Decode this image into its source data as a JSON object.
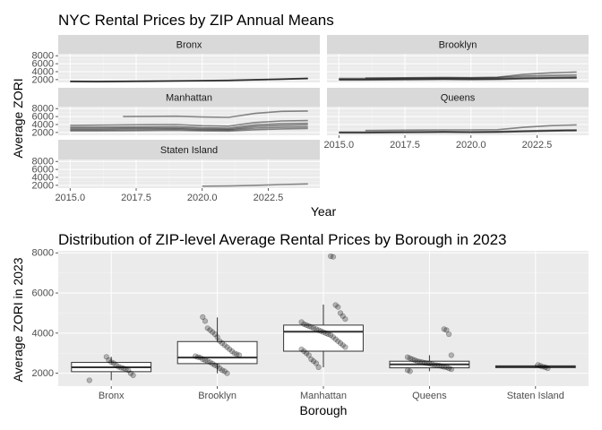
{
  "chart_data": [
    {
      "type": "line",
      "title": "NYC Rental Prices by ZIP Annual Means",
      "xlabel": "Year",
      "ylabel": "Average ZORI",
      "x_ticks": [
        "2015.0",
        "2017.5",
        "2020.0",
        "2022.5"
      ],
      "x_tick_values": [
        2015.0,
        2017.5,
        2020.0,
        2022.5
      ],
      "y_ticks": [
        "2000",
        "4000",
        "6000",
        "8000"
      ],
      "y_tick_values": [
        2000,
        4000,
        6000,
        8000
      ],
      "xlim": [
        2014.55,
        2024.45
      ],
      "ylim": [
        1300,
        8500
      ],
      "facets": [
        {
          "name": "Bronx",
          "series": [
            {
              "x": [
                2015,
                2016,
                2017,
                2018,
                2019,
                2020,
                2021,
                2022,
                2023,
                2024
              ],
              "values": [
                1550,
                1500,
                1560,
                1620,
                1680,
                1720,
                1800,
                1950,
                2100,
                2300
              ]
            },
            {
              "x": [
                2015,
                2016,
                2017,
                2018,
                2019,
                2020,
                2021,
                2022,
                2023,
                2024
              ],
              "values": [
                1600,
                1580,
                1600,
                1650,
                1700,
                1760,
                1850,
                2000,
                2150,
                2350
              ]
            },
            {
              "x": [
                2015,
                2016,
                2017,
                2018,
                2019,
                2020,
                2021,
                2022,
                2023,
                2024
              ],
              "values": [
                1500,
                1460,
                1510,
                1580,
                1640,
                1700,
                1780,
                1920,
                2080,
                2250
              ]
            }
          ]
        },
        {
          "name": "Brooklyn",
          "series": [
            {
              "x": [
                2015,
                2016,
                2017,
                2018,
                2019,
                2020,
                2021,
                2022,
                2023,
                2024
              ],
              "values": [
                2300,
                2320,
                2350,
                2400,
                2450,
                2400,
                2500,
                2900,
                3050,
                3150
              ]
            },
            {
              "x": [
                2015,
                2016,
                2017,
                2018,
                2019,
                2020,
                2021,
                2022,
                2023,
                2024
              ],
              "values": [
                2100,
                2100,
                2150,
                2200,
                2250,
                2200,
                2250,
                2500,
                2600,
                2700
              ]
            },
            {
              "x": [
                2015,
                2016,
                2017,
                2018,
                2019,
                2020,
                2021,
                2022,
                2023,
                2024
              ],
              "values": [
                2000,
                2020,
                2050,
                2100,
                2150,
                2100,
                2150,
                2300,
                2400,
                2500
              ]
            },
            {
              "x": [
                2016,
                2017,
                2018,
                2019,
                2020,
                2021,
                2022,
                2023,
                2024
              ],
              "values": [
                2400,
                2450,
                2500,
                2550,
                2500,
                2600,
                3300,
                3700,
                3900
              ]
            },
            {
              "x": [
                2015,
                2016,
                2017,
                2018,
                2019,
                2020,
                2021,
                2022,
                2023,
                2024
              ],
              "values": [
                1900,
                1900,
                1950,
                2000,
                2050,
                2000,
                2050,
                2200,
                2300,
                2350
              ]
            }
          ]
        },
        {
          "name": "Manhattan",
          "series": [
            {
              "x": [
                2017,
                2018,
                2019,
                2020,
                2021,
                2022,
                2023,
                2024
              ],
              "values": [
                6000,
                6050,
                6100,
                5900,
                5800,
                6800,
                7300,
                7400
              ]
            },
            {
              "x": [
                2015,
                2016,
                2017,
                2018,
                2019,
                2020,
                2021,
                2022,
                2023,
                2024
              ],
              "values": [
                3800,
                3850,
                3900,
                3950,
                4000,
                3700,
                3600,
                4500,
                4900,
                5000
              ]
            },
            {
              "x": [
                2015,
                2016,
                2017,
                2018,
                2019,
                2020,
                2021,
                2022,
                2023,
                2024
              ],
              "values": [
                3300,
                3300,
                3350,
                3400,
                3450,
                3200,
                3100,
                3900,
                4200,
                4300
              ]
            },
            {
              "x": [
                2015,
                2016,
                2017,
                2018,
                2019,
                2020,
                2021,
                2022,
                2023,
                2024
              ],
              "values": [
                3000,
                3000,
                3050,
                3100,
                3100,
                2900,
                2800,
                3500,
                3800,
                3900
              ]
            },
            {
              "x": [
                2015,
                2016,
                2017,
                2018,
                2019,
                2020,
                2021,
                2022,
                2023,
                2024
              ],
              "values": [
                2700,
                2700,
                2750,
                2800,
                2850,
                2650,
                2600,
                3100,
                3300,
                3400
              ]
            },
            {
              "x": [
                2015,
                2016,
                2017,
                2018,
                2019,
                2020,
                2021,
                2022,
                2023,
                2024
              ],
              "values": [
                2400,
                2400,
                2450,
                2500,
                2550,
                2400,
                2350,
                2700,
                2900,
                3000
              ]
            }
          ]
        },
        {
          "name": "Queens",
          "series": [
            {
              "x": [
                2016,
                2017,
                2018,
                2019,
                2020,
                2021,
                2022,
                2023,
                2024
              ],
              "values": [
                2500,
                2550,
                2600,
                2650,
                2650,
                2700,
                3300,
                3700,
                3900
              ]
            },
            {
              "x": [
                2015,
                2016,
                2017,
                2018,
                2019,
                2020,
                2021,
                2022,
                2023,
                2024
              ],
              "values": [
                2100,
                2100,
                2150,
                2200,
                2250,
                2200,
                2250,
                2400,
                2550,
                2650
              ]
            },
            {
              "x": [
                2015,
                2016,
                2017,
                2018,
                2019,
                2020,
                2021,
                2022,
                2023,
                2024
              ],
              "values": [
                1900,
                1900,
                1950,
                2000,
                2050,
                2000,
                2050,
                2200,
                2350,
                2450
              ]
            },
            {
              "x": [
                2015,
                2016,
                2017,
                2018,
                2019,
                2020,
                2021,
                2022,
                2023,
                2024
              ],
              "values": [
                2000,
                2000,
                2050,
                2100,
                2150,
                2100,
                2150,
                2300,
                2450,
                2550
              ]
            }
          ]
        },
        {
          "name": "Staten Island",
          "series": [
            {
              "x": [
                2020,
                2021,
                2022,
                2023,
                2024
              ],
              "values": [
                1800,
                1850,
                2000,
                2200,
                2350
              ]
            }
          ]
        }
      ]
    },
    {
      "type": "box",
      "title": "Distribution of ZIP-level Average Rental Prices by Borough in 2023",
      "xlabel": "Borough",
      "ylabel": "Average ZORI in 2023",
      "categories": [
        "Bronx",
        "Brooklyn",
        "Manhattan",
        "Queens",
        "Staten Island"
      ],
      "y_ticks": [
        "2000",
        "4000",
        "6000",
        "8000"
      ],
      "y_tick_values": [
        2000,
        4000,
        6000,
        8000
      ],
      "ylim": [
        1360,
        8100
      ],
      "boxes": [
        {
          "name": "Bronx",
          "whisker_low": 1650,
          "q1": 2080,
          "median": 2300,
          "q3": 2540,
          "whisker_high": 2820
        },
        {
          "name": "Brooklyn",
          "whisker_low": 2000,
          "q1": 2480,
          "median": 2780,
          "q3": 3580,
          "whisker_high": 4780
        },
        {
          "name": "Manhattan",
          "whisker_low": 2300,
          "q1": 3100,
          "median": 4070,
          "q3": 4400,
          "whisker_high": 5420
        },
        {
          "name": "Queens",
          "whisker_low": 2100,
          "q1": 2270,
          "median": 2440,
          "q3": 2600,
          "whisker_high": 2900
        },
        {
          "name": "Staten Island",
          "whisker_low": 2250,
          "q1": 2280,
          "median": 2330,
          "q3": 2370,
          "whisker_high": 2420
        }
      ],
      "points": [
        {
          "name": "Bronx",
          "values": [
            1650,
            1900,
            2000,
            2150,
            2200,
            2250,
            2280,
            2320,
            2400,
            2500,
            2550,
            2650,
            2820
          ]
        },
        {
          "name": "Brooklyn",
          "values": [
            2000,
            2100,
            2150,
            2250,
            2350,
            2400,
            2480,
            2550,
            2600,
            2650,
            2700,
            2780,
            2800,
            2850,
            2900,
            2950,
            3000,
            3100,
            3200,
            3300,
            3400,
            3500,
            3600,
            3800,
            3950,
            4050,
            4150,
            4250,
            4600,
            4800
          ]
        },
        {
          "name": "Manhattan",
          "values": [
            2300,
            2500,
            2600,
            2700,
            2900,
            3000,
            3100,
            3200,
            3300,
            3400,
            3500,
            3600,
            3700,
            3800,
            3900,
            3950,
            4000,
            4050,
            4100,
            4150,
            4200,
            4250,
            4300,
            4350,
            4400,
            4450,
            4550,
            4700,
            4850,
            5000,
            5300,
            5400,
            7800,
            7830
          ]
        },
        {
          "name": "Queens",
          "values": [
            2100,
            2150,
            2200,
            2250,
            2300,
            2320,
            2350,
            2380,
            2400,
            2420,
            2450,
            2480,
            2500,
            2520,
            2550,
            2580,
            2600,
            2650,
            2700,
            2750,
            2800,
            2900,
            3950,
            4150,
            4200
          ]
        },
        {
          "name": "Staten Island",
          "values": [
            2250,
            2300,
            2330,
            2370,
            2420
          ]
        }
      ]
    }
  ]
}
